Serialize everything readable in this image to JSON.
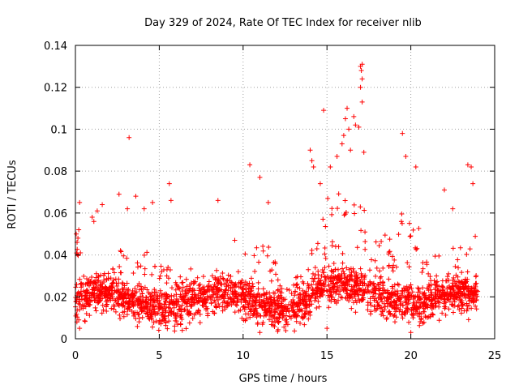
{
  "chart_data": {
    "type": "scatter",
    "title": "Day 329 of 2024, Rate Of TEC Index for receiver nlib",
    "xlabel": "GPS time / hours",
    "ylabel": "ROTI / TECUs",
    "xlim": [
      0,
      25
    ],
    "ylim": [
      0,
      0.14
    ],
    "xticks": [
      0,
      5,
      10,
      15,
      20,
      25
    ],
    "yticks": [
      0,
      0.02,
      0.04,
      0.06,
      0.08,
      0.1,
      0.12,
      0.14
    ],
    "xtick_labels": [
      "0",
      "5",
      "10",
      "15",
      "20",
      "25"
    ],
    "ytick_labels": [
      "0",
      "0.02",
      "0.04",
      "0.06",
      "0.08",
      "0.1",
      "0.12",
      "0.14"
    ],
    "grid": true,
    "marker": "+",
    "color": "#ff0000",
    "series": [
      {
        "points": [
          [
            0.05,
            0.05
          ],
          [
            0.1,
            0.046
          ],
          [
            0.15,
            0.048
          ],
          [
            0.2,
            0.052
          ],
          [
            0.25,
            0.065
          ],
          [
            0.3,
            0.041
          ],
          [
            0.2,
            0.009
          ],
          [
            0.25,
            0.005
          ],
          [
            1.0,
            0.058
          ],
          [
            1.1,
            0.056
          ],
          [
            1.6,
            0.064
          ],
          [
            1.3,
            0.061
          ],
          [
            2.6,
            0.069
          ],
          [
            3.1,
            0.062
          ],
          [
            3.2,
            0.096
          ],
          [
            3.6,
            0.068
          ],
          [
            4.1,
            0.062
          ],
          [
            4.6,
            0.065
          ],
          [
            5.6,
            0.074
          ],
          [
            5.7,
            0.066
          ],
          [
            8.5,
            0.066
          ],
          [
            9.5,
            0.047
          ],
          [
            10.4,
            0.083
          ],
          [
            11.0,
            0.077
          ],
          [
            11.5,
            0.065
          ],
          [
            14.0,
            0.09
          ],
          [
            14.1,
            0.085
          ],
          [
            14.2,
            0.082
          ],
          [
            14.6,
            0.074
          ],
          [
            14.8,
            0.109
          ],
          [
            15.2,
            0.082
          ],
          [
            15.6,
            0.087
          ],
          [
            15.9,
            0.093
          ],
          [
            16.0,
            0.097
          ],
          [
            16.1,
            0.105
          ],
          [
            16.2,
            0.11
          ],
          [
            16.3,
            0.1
          ],
          [
            16.4,
            0.09
          ],
          [
            16.6,
            0.106
          ],
          [
            16.7,
            0.102
          ],
          [
            16.9,
            0.101
          ],
          [
            17.0,
            0.13
          ],
          [
            17.05,
            0.128
          ],
          [
            17.1,
            0.131
          ],
          [
            17.1,
            0.124
          ],
          [
            17.0,
            0.12
          ],
          [
            17.1,
            0.113
          ],
          [
            17.2,
            0.089
          ],
          [
            19.5,
            0.098
          ],
          [
            19.7,
            0.087
          ],
          [
            20.3,
            0.082
          ],
          [
            22.0,
            0.071
          ],
          [
            22.5,
            0.062
          ],
          [
            23.4,
            0.083
          ],
          [
            23.6,
            0.082
          ],
          [
            23.7,
            0.074
          ],
          [
            15.0,
            0.005
          ],
          [
            11.0,
            0.003
          ],
          [
            20.0,
            0.003
          ]
        ]
      }
    ]
  }
}
